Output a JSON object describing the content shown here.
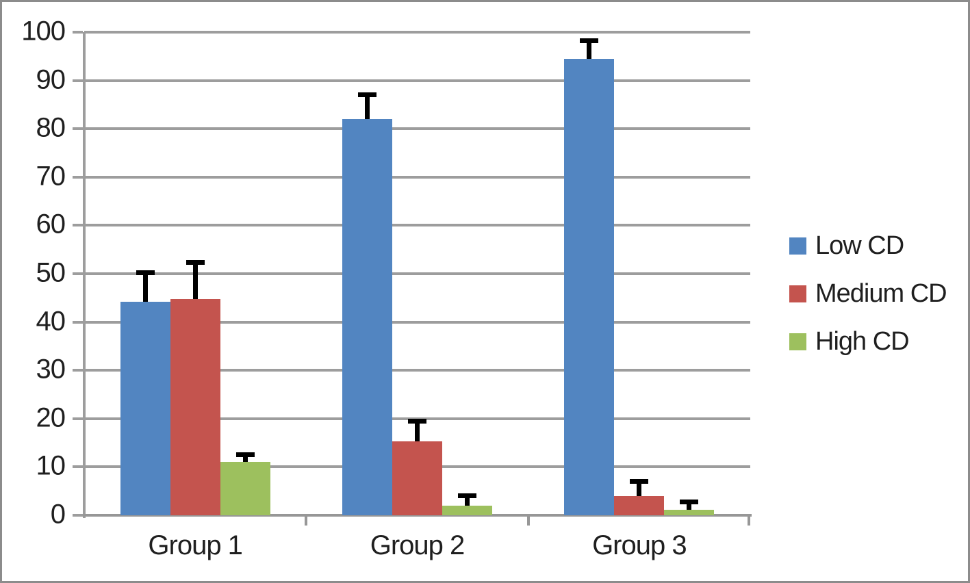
{
  "chart_data": {
    "type": "bar",
    "title": "",
    "xlabel": "",
    "ylabel": "",
    "categories": [
      "Group 1",
      "Group 2",
      "Group 3"
    ],
    "series": [
      {
        "name": "Low CD",
        "color": "#5285C1",
        "values": [
          44.2,
          82.0,
          94.5
        ],
        "errors": [
          6.0,
          5.1,
          3.7
        ]
      },
      {
        "name": "Medium CD",
        "color": "#C4544E",
        "values": [
          44.8,
          15.3,
          3.9
        ],
        "errors": [
          7.5,
          4.2,
          3.1
        ]
      },
      {
        "name": "High CD",
        "color": "#9DC05E",
        "values": [
          11.0,
          2.0,
          1.2
        ],
        "errors": [
          1.5,
          2.0,
          1.6
        ]
      }
    ],
    "ylim": [
      0,
      100
    ],
    "ytick_interval": 10,
    "yticks": [
      0,
      10,
      20,
      30,
      40,
      50,
      60,
      70,
      80,
      90,
      100
    ],
    "grid": true,
    "legend_position": "right",
    "error_bars": "plus-direction-only"
  },
  "styles": {
    "background": "#ffffff",
    "frame_border_color": "#8c8c8c",
    "gridline_color": "#9d9d9d",
    "axis_color": "#979797",
    "error_bar_color": "#000000",
    "text_color": "#1f1f1f"
  }
}
